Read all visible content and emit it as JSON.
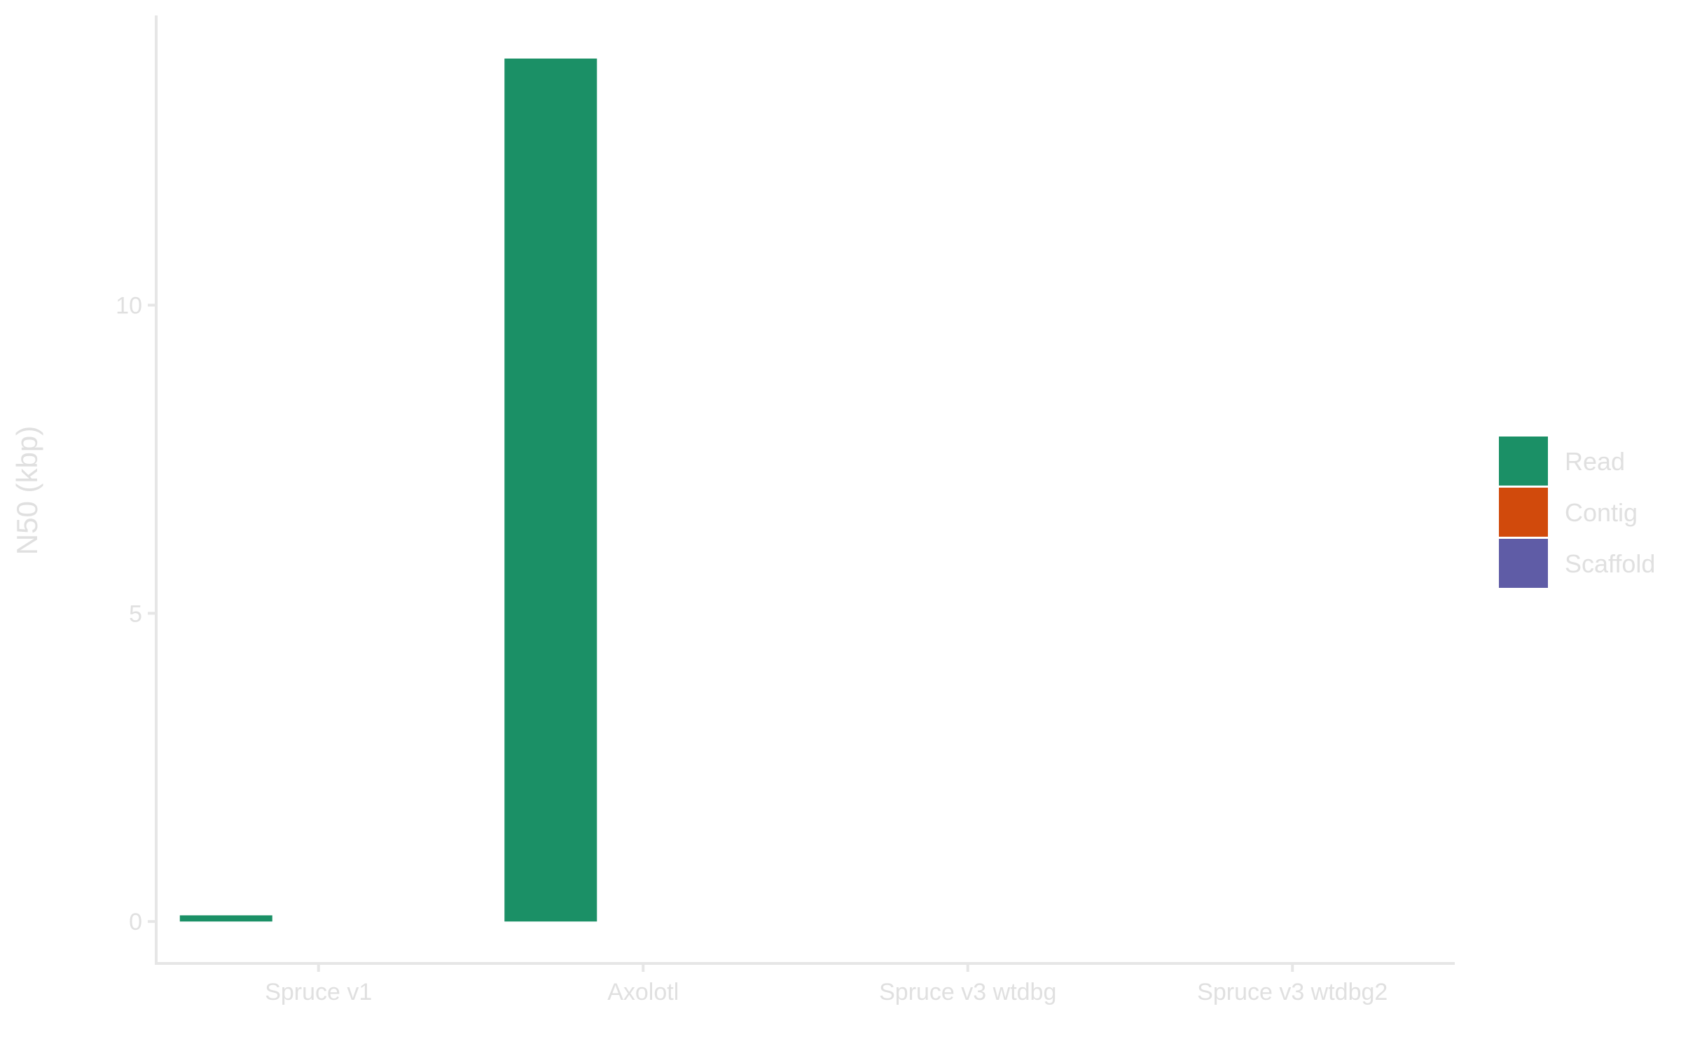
{
  "chart_data": {
    "type": "bar",
    "categories": [
      "Spruce v1",
      "Axolotl",
      "Spruce v3 wtdbg",
      "Spruce v3 wtdbg2"
    ],
    "series": [
      {
        "name": "Read",
        "color": "#1b9066",
        "values": [
          0.1,
          14.0,
          0,
          0
        ]
      },
      {
        "name": "Contig",
        "color": "#d14a0c",
        "values": [
          0,
          0,
          0,
          0
        ]
      },
      {
        "name": "Scaffold",
        "color": "#5f5ca6",
        "values": [
          0,
          0,
          0,
          0
        ]
      }
    ],
    "title": "",
    "xlabel": "",
    "ylabel": "N50 (kbp)",
    "ylim": [
      -0.68,
      14.7
    ],
    "yticks": [
      "0",
      "5",
      "10"
    ],
    "grid": false,
    "legend_position": "right",
    "axis_color": "#e6e6e6",
    "text_color": "#e0e0e0"
  }
}
